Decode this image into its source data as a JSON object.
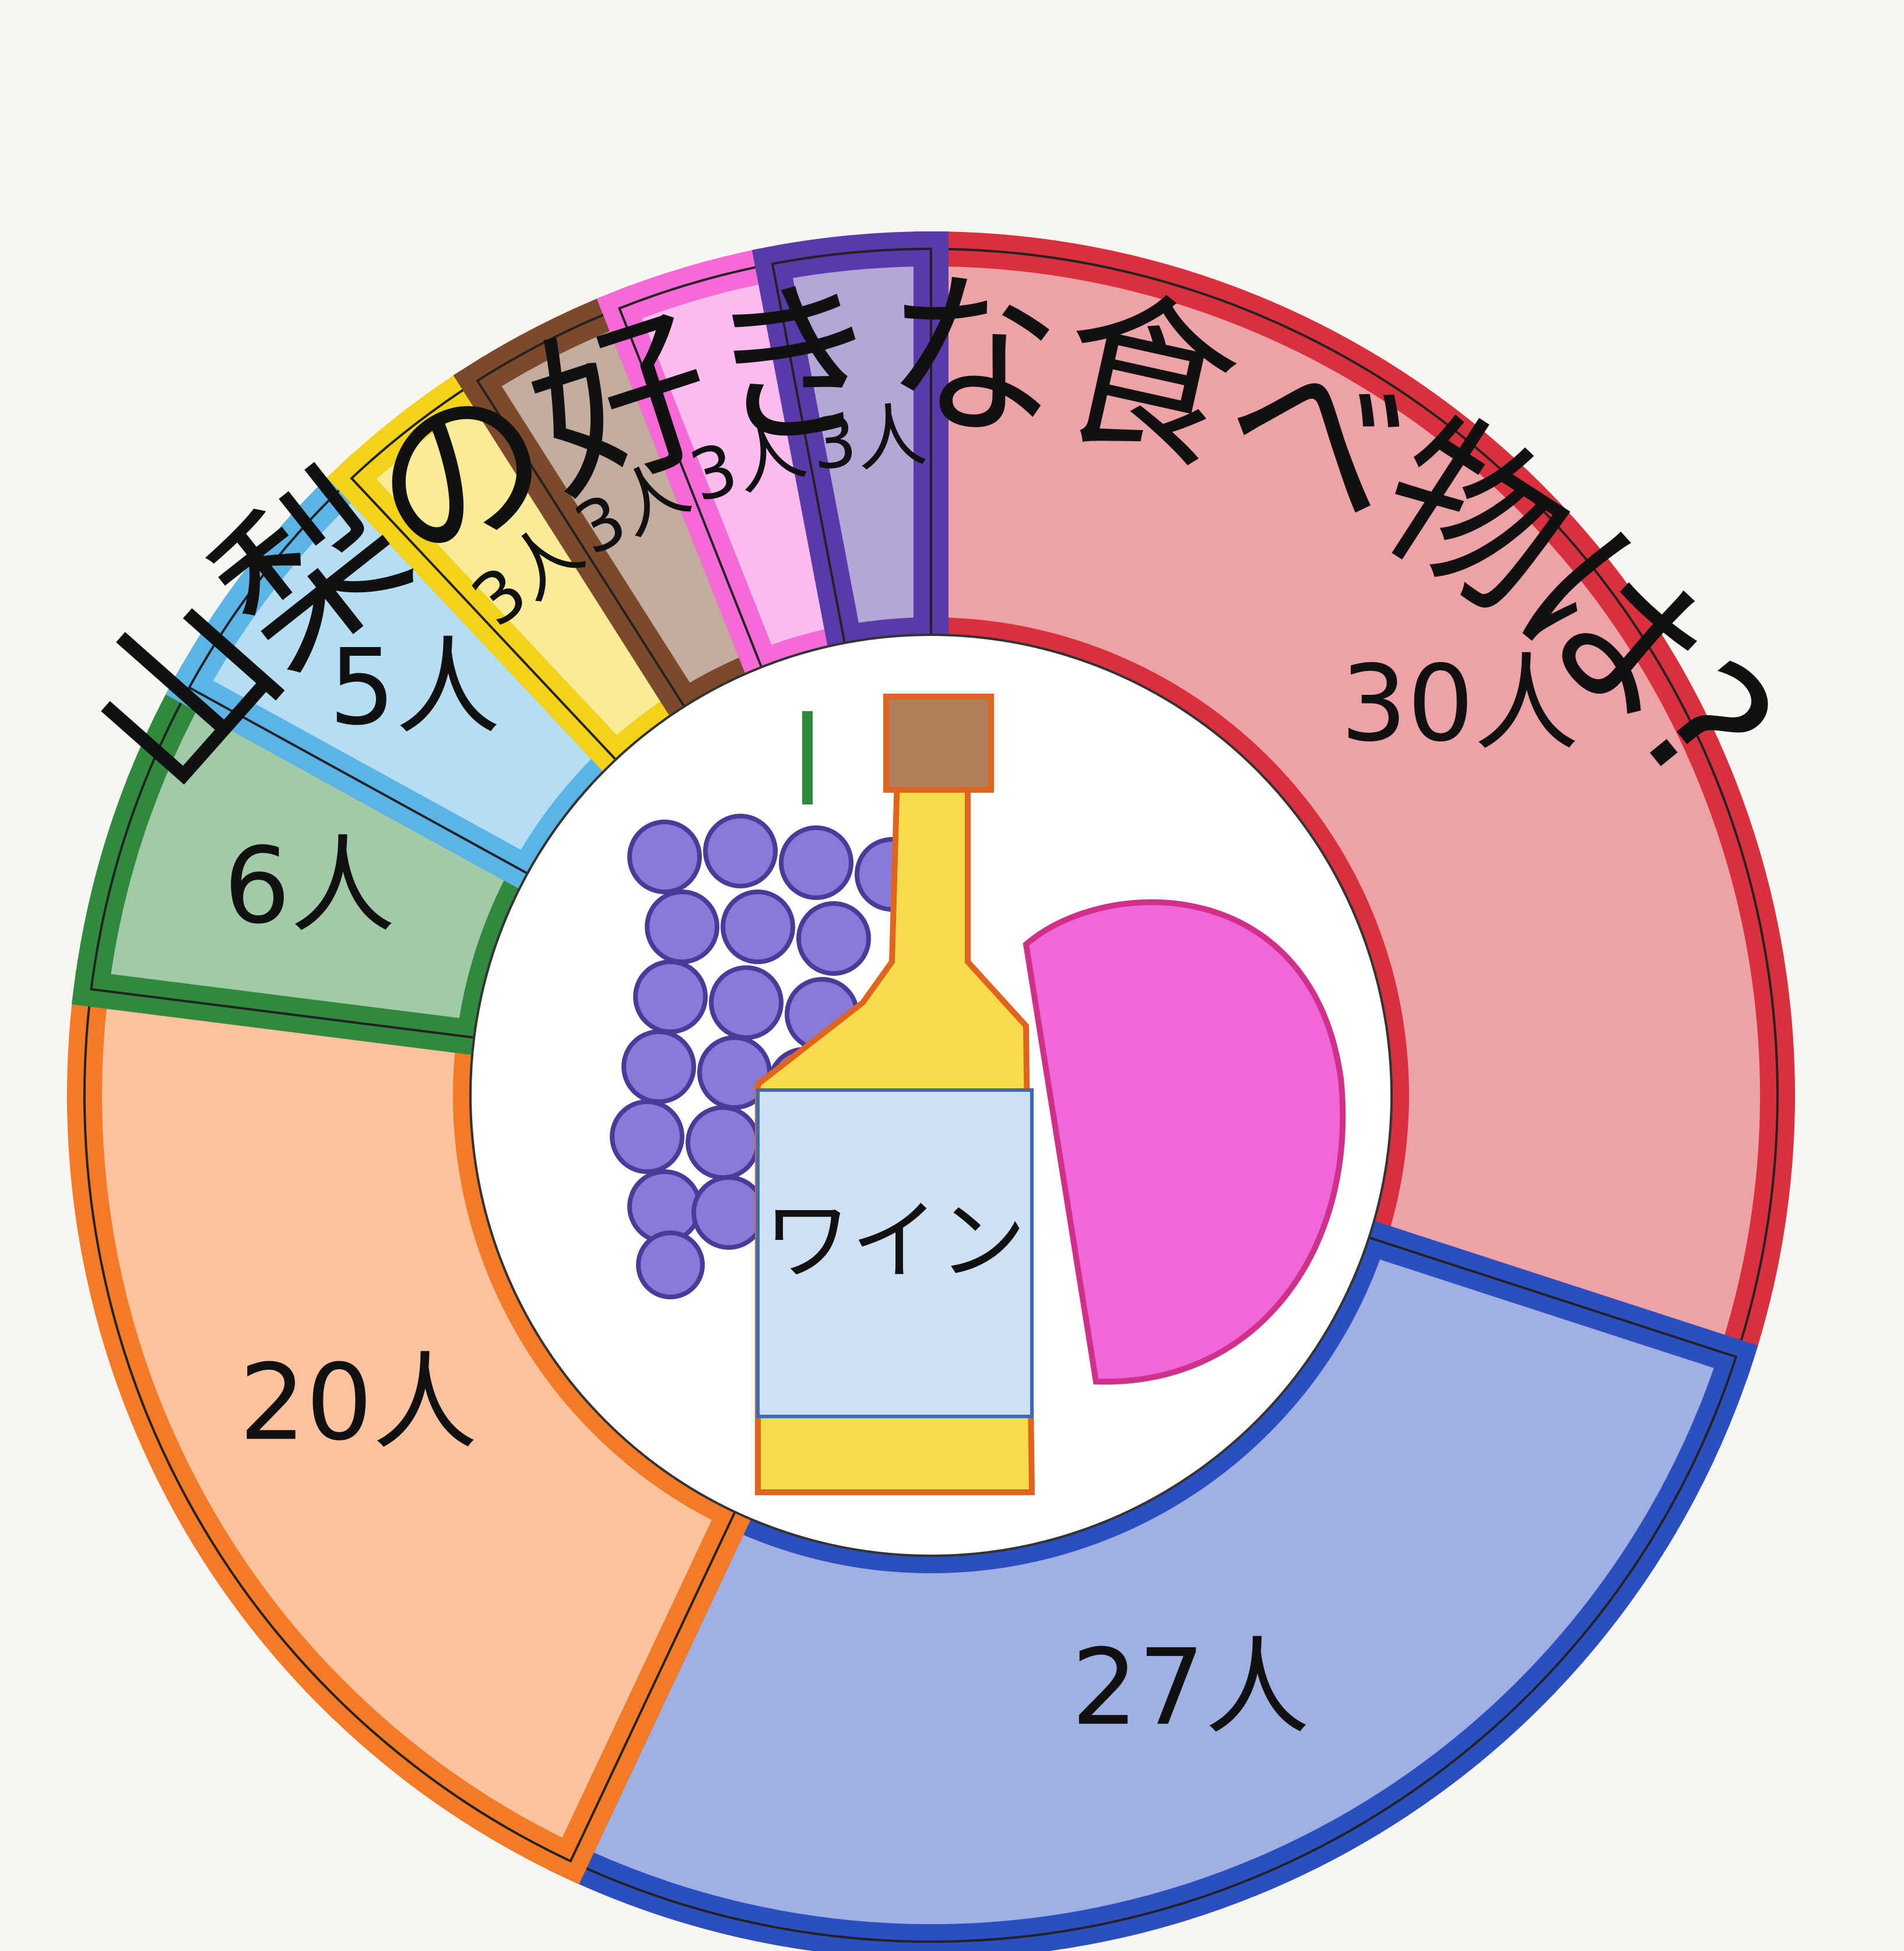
{
  "chart_data": {
    "type": "donut",
    "title": "山梨の好きな食べ物は?",
    "center_text": "ワイン",
    "values": [
      30,
      27,
      20,
      6,
      5,
      3,
      3,
      3,
      3
    ],
    "value_labels": [
      "30人",
      "27人",
      "20人",
      "6人",
      "5人",
      "3人",
      "3人",
      "3人",
      "3人"
    ],
    "colors": [
      "#d8303c",
      "#2c4fc0",
      "#f37a26",
      "#2f8a3e",
      "#5ab4e6",
      "#f3d21c",
      "#7a4a2a",
      "#f56ad6",
      "#5a3aa8"
    ]
  }
}
